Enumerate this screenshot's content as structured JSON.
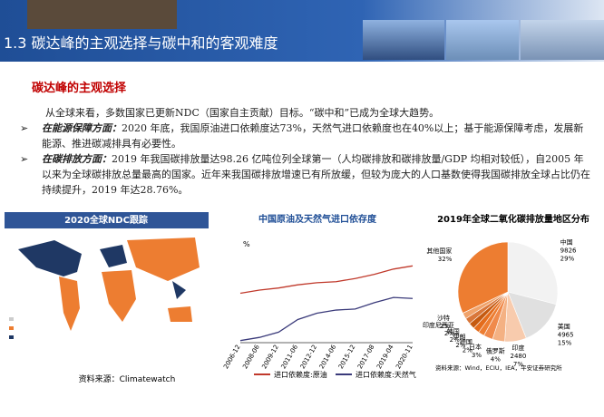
{
  "header": {
    "title": "1.3 碳达峰的主观选择与碳中和的客观难度"
  },
  "section": {
    "title": "碳达峰的主观选择",
    "intro": "从全球来看，多数国家已更新NDC（国家自主贡献）目标。“碳中和”已成为全球大趋势。",
    "bullets": [
      {
        "lead": "在能源保障方面：",
        "text": "2020 年底，我国原油进口依赖度达73%，天然气进口依赖度也在40%以上；基于能源保障考虑，发展新能源、推进碳减排具有必要性。"
      },
      {
        "lead": "在碳排放方面：",
        "text": "2019 年我国碳排放量达98.26 亿吨位列全球第一（人均碳排放和碳排放量/GDP 均相对较低），自2005 年以来为全球碳排放总量最高的国家。近年来我国碳排放增速已有所放缓，但较为庞大的人口基数使得我国碳排放全球占比仍在持续提升，2019 年达28.76%。"
      }
    ]
  },
  "map_panel": {
    "title": "2020全球NDC跟踪",
    "source": "资料来源：Climatewatch"
  },
  "charts": [
    {
      "type": "line",
      "title": "中国原油及天然气进口依存度",
      "y_unit": "%",
      "categories": [
        "2006-12",
        "2008-06",
        "2009-12",
        "2011-06",
        "2012-12",
        "2014-06",
        "2015-12",
        "2017-08",
        "2019-04",
        "2020-11"
      ],
      "ylim": [
        0,
        100
      ],
      "series": [
        {
          "name": "进口依赖度:原油",
          "color": "#c0392b",
          "values": [
            47,
            50,
            52,
            55,
            57,
            58,
            61,
            65,
            70,
            73
          ]
        },
        {
          "name": "进口依赖度:天然气",
          "color": "#3a3a7a",
          "values": [
            2,
            5,
            10,
            22,
            28,
            31,
            32,
            38,
            43,
            42
          ]
        }
      ]
    },
    {
      "type": "pie",
      "title": "2019年全球二氧化碳排放量地区分布",
      "categories": [
        "中国",
        "美国",
        "印度",
        "俄罗斯",
        "日本",
        "德国",
        "伊朗",
        "韩国",
        "印度尼西亚",
        "沙特",
        "其他国家"
      ],
      "values": [
        29,
        15,
        7,
        4,
        3,
        2,
        2,
        2,
        2,
        2,
        32
      ],
      "value_labels": [
        "29%",
        "15%",
        "7%",
        "4%",
        "3%",
        "2%",
        "2%",
        "2%",
        "2%",
        "2%",
        "32%"
      ],
      "amounts": [
        9826,
        4965,
        2480,
        null,
        null,
        null,
        null,
        null,
        null,
        null,
        null
      ],
      "colors": [
        "#f2f2f2",
        "#e0e0e0",
        "#f8cbad",
        "#f4b183",
        "#f08a4b",
        "#ed7d31",
        "#e46c1c",
        "#c55a11",
        "#d9773a",
        "#f0a36b",
        "#ed7d31"
      ],
      "source": "资料来源：Wind，ECIU，IEA，平安证券研究所"
    }
  ]
}
